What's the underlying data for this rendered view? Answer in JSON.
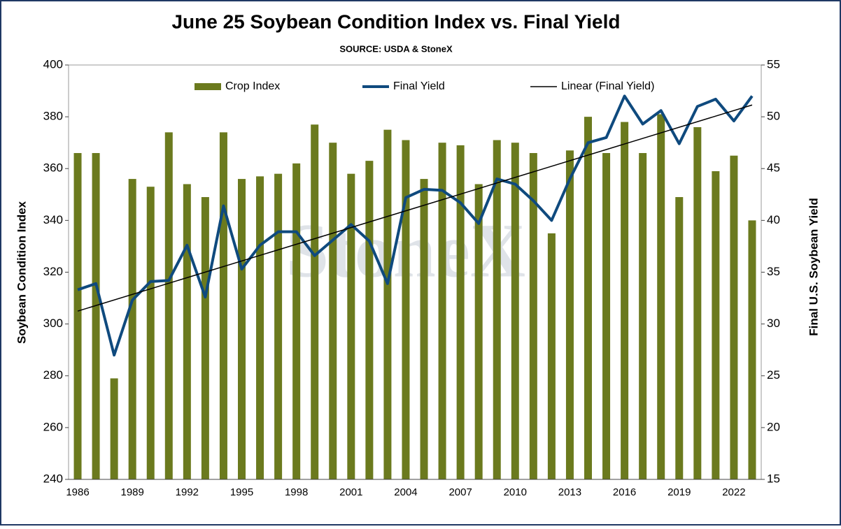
{
  "chart_data": {
    "type": "bar-line",
    "title": "June 25 Soybean Condition Index vs. Final Yield",
    "subtitle": "SOURCE: USDA & StoneX",
    "watermark": "StoneX",
    "y_label": "Soybean Condition Index",
    "y2_label": "Final U.S. Soybean Yield",
    "categories": [
      "1986",
      null,
      null,
      "1989",
      null,
      null,
      "1992",
      null,
      null,
      "1995",
      null,
      null,
      "1998",
      null,
      null,
      "2001",
      null,
      null,
      "2004",
      null,
      null,
      "2007",
      null,
      null,
      "2010",
      null,
      null,
      "2013",
      null,
      null,
      "2016",
      null,
      null,
      "2019",
      null,
      null,
      "2022",
      null
    ],
    "series": [
      {
        "name": "Crop Index",
        "type": "bar",
        "color": "#6b7a1e",
        "values": [
          366,
          366,
          279,
          356,
          353,
          374,
          354,
          349,
          374,
          356,
          357,
          358,
          362,
          377,
          370,
          358,
          363,
          375,
          371,
          356,
          370,
          369,
          354,
          371,
          370,
          366,
          335,
          367,
          380,
          366,
          378,
          366,
          381,
          349,
          376,
          359,
          365,
          340
        ]
      },
      {
        "name": "Final Yield",
        "type": "line",
        "axis": "y2",
        "color": "#0f4a7e",
        "values": [
          33.3,
          33.9,
          27.0,
          32.3,
          34.1,
          34.2,
          37.6,
          32.6,
          41.4,
          35.3,
          37.6,
          38.9,
          38.9,
          36.6,
          38.1,
          39.6,
          38.0,
          33.9,
          42.2,
          43.0,
          42.9,
          41.7,
          39.7,
          44.0,
          43.5,
          41.9,
          40.0,
          44.0,
          47.5,
          48.0,
          52.0,
          49.3,
          50.6,
          47.4,
          51.0,
          51.7,
          49.6,
          52.0
        ]
      }
    ],
    "trendline": {
      "name": "Linear (Final Yield)",
      "of": 1,
      "color": "#000000"
    },
    "ylim": [
      240,
      400
    ],
    "yticks": [
      240,
      260,
      280,
      300,
      320,
      340,
      360,
      380,
      400
    ],
    "y2lim": [
      15,
      55
    ],
    "y2ticks": [
      15,
      20,
      25,
      30,
      35,
      40,
      45,
      50,
      55
    ],
    "grid": false,
    "legend": "top"
  }
}
